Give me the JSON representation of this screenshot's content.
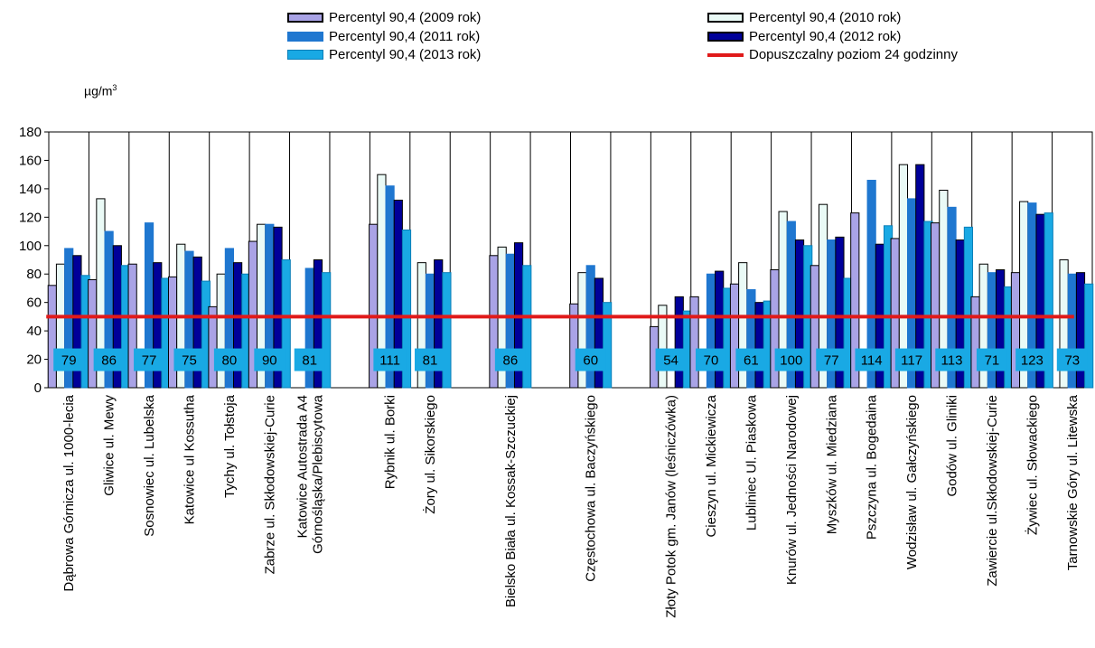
{
  "chart_data": {
    "type": "bar",
    "ylabel": "µg/m³",
    "ylabel_base": "µg/m",
    "ylabel_sup": "3",
    "ylim": [
      0,
      180
    ],
    "yticks": [
      "0",
      "20",
      "40",
      "60",
      "80",
      "100",
      "120",
      "140",
      "160",
      "180"
    ],
    "grid": "vertical group separators",
    "legend_position": "top",
    "categories": [
      "Dąbrowa Górnicza ul. 1000-lecia",
      "Gliwice ul. Mewy",
      "Sosnowiec ul. Lubelska",
      "Katowice ul Kossutha",
      "Tychy ul. Tołstoja",
      "Zabrze ul. Skłodowskiej-Curie",
      "Katowice Autostrada A4 Górnośląska/Plebiscytowa",
      "",
      "Rybnik ul. Borki",
      "Żory ul. Sikorskiego",
      "",
      "Bielsko Biała ul. Kossak-Szczuckiej",
      "",
      "Częstochowa ul. Baczyńskiego",
      "",
      "Złoty Potok gm. Janów (leśniczówka)",
      "Cieszyn ul. Mickiewicza",
      "Lubliniec Ul. Piaskowa",
      "Knurów ul. Jedności Narodowej",
      "Myszków ul. Miedziana",
      "Pszczyna ul. Bogedaina",
      "Wodzisław ul. Gałczyńskiego",
      "Godów ul. Gliniki",
      "Zawiercie ul.Skłodowskiej-Curie",
      "Żywiec ul. Słowackiego",
      "Tarnowskie Góry ul. Litewska"
    ],
    "label_lines": [
      [
        "Dąbrowa Górnicza ul. 1000-lecia"
      ],
      [
        "Gliwice ul. Mewy"
      ],
      [
        "Sosnowiec ul. Lubelska"
      ],
      [
        "Katowice ul Kossutha"
      ],
      [
        "Tychy ul. Tołstoja"
      ],
      [
        "Zabrze ul. Skłodowskiej-Curie"
      ],
      [
        "Katowice Autostrada A4",
        "Górnośląska/Plebiscytowa"
      ],
      [],
      [
        "Rybnik ul. Borki"
      ],
      [
        "Żory ul. Sikorskiego"
      ],
      [],
      [
        "Bielsko Biała ul. Kossak-Szczuckiej"
      ],
      [],
      [
        "Częstochowa ul. Baczyńskiego"
      ],
      [],
      [
        "Złoty Potok gm. Janów (leśniczówka)"
      ],
      [
        "Cieszyn ul. Mickiewicza"
      ],
      [
        "Lubliniec Ul. Piaskowa"
      ],
      [
        "Knurów ul. Jedności Narodowej"
      ],
      [
        "Myszków ul. Miedziana"
      ],
      [
        "Pszczyna ul. Bogedaina"
      ],
      [
        "Wodzisław ul. Gałczyńskiego"
      ],
      [
        "Godów ul. Gliniki"
      ],
      [
        "Zawiercie ul.Skłodowskiej-Curie"
      ],
      [
        "Żywiec ul. Słowackiego"
      ],
      [
        "Tarnowskie Góry ul. Litewska"
      ]
    ],
    "series": [
      {
        "name": "Percentyl 90,4 (2009 rok)",
        "color": "#a9a3e6",
        "border": "#000000",
        "values": [
          72,
          76,
          87,
          78,
          57,
          103,
          null,
          null,
          115,
          null,
          null,
          93,
          null,
          59,
          null,
          43,
          64,
          73,
          83,
          86,
          123,
          105,
          116,
          64,
          81,
          null
        ]
      },
      {
        "name": "Percentyl 90,4 (2010 rok)",
        "color": "#eafaf6",
        "border": "#000000",
        "values": [
          87,
          133,
          null,
          101,
          80,
          115,
          null,
          null,
          150,
          88,
          null,
          99,
          null,
          81,
          null,
          58,
          null,
          88,
          124,
          129,
          null,
          157,
          139,
          87,
          131,
          90
        ]
      },
      {
        "name": "Percentyl 90,4 (2011 rok)",
        "color": "#1f77d0",
        "border": "#1f77d0",
        "values": [
          98,
          110,
          116,
          96,
          98,
          115,
          84,
          null,
          142,
          80,
          null,
          94,
          null,
          86,
          null,
          null,
          80,
          69,
          117,
          104,
          146,
          133,
          127,
          81,
          130,
          80
        ]
      },
      {
        "name": "Percentyl 90,4 (2012 rok)",
        "color": "#000099",
        "border": "#000000",
        "values": [
          93,
          100,
          88,
          92,
          88,
          113,
          90,
          null,
          132,
          90,
          null,
          102,
          null,
          77,
          null,
          64,
          82,
          60,
          104,
          106,
          101,
          157,
          104,
          83,
          122,
          81
        ]
      },
      {
        "name": "Percentyl 90,4 (2013 rok)",
        "color": "#19a9e4",
        "border": "#0b7fb8",
        "values": [
          79,
          86,
          77,
          75,
          80,
          90,
          81,
          null,
          111,
          81,
          null,
          86,
          null,
          60,
          null,
          54,
          70,
          61,
          100,
          77,
          114,
          117,
          113,
          71,
          123,
          73
        ]
      }
    ],
    "reference_line": {
      "name": "Dopuszczalny poziom 24 godzinny",
      "value": 50,
      "color": "#e01a1a"
    },
    "data_labels": [
      "79",
      "86",
      "77",
      "75",
      "80",
      "90",
      "81",
      "",
      "111",
      "81",
      "",
      "86",
      "",
      "60",
      "",
      "54",
      "70",
      "61",
      "100",
      "77",
      "114",
      "117",
      "113",
      "71",
      "123",
      "73"
    ],
    "data_label_color": "#19a9e4"
  }
}
